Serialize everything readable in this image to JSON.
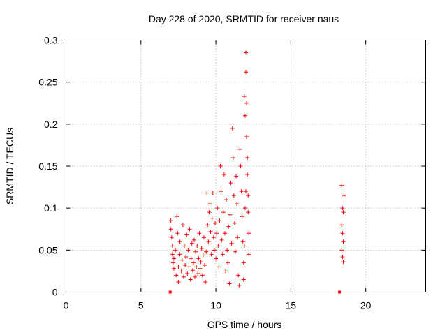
{
  "chart_data": {
    "type": "scatter",
    "title": "Day 228 of 2020, SRMTID for receiver naus",
    "xlabel": "GPS time / hours",
    "ylabel": "SRMTID / TECUs",
    "xlim": [
      0,
      24
    ],
    "ylim": [
      0,
      0.3
    ],
    "xticks": [
      0,
      5,
      10,
      15,
      20
    ],
    "xtick_labels": [
      "0",
      "5",
      "10",
      "15",
      "20"
    ],
    "yticks": [
      0,
      0.05,
      0.1,
      0.15,
      0.2,
      0.25,
      0.3
    ],
    "ytick_labels": [
      "0",
      "0.05",
      "0.1",
      "0.15",
      "0.2",
      "0.25",
      "0.3"
    ],
    "grid": true,
    "marker": "+",
    "color": "#ff0000",
    "series": [
      {
        "name": "SRMTID",
        "points": [
          [
            7.0,
            0.085
          ],
          [
            7.0,
            0.075
          ],
          [
            7.05,
            0.065
          ],
          [
            7.1,
            0.055
          ],
          [
            7.1,
            0.045
          ],
          [
            7.15,
            0.035
          ],
          [
            7.2,
            0.04
          ],
          [
            7.2,
            0.028
          ],
          [
            7.3,
            0.05
          ],
          [
            7.35,
            0.02
          ],
          [
            7.4,
            0.09
          ],
          [
            7.45,
            0.07
          ],
          [
            7.5,
            0.03
          ],
          [
            7.5,
            0.012
          ],
          [
            7.6,
            0.06
          ],
          [
            7.6,
            0.045
          ],
          [
            7.7,
            0.025
          ],
          [
            7.75,
            0.038
          ],
          [
            7.8,
            0.08
          ],
          [
            7.85,
            0.018
          ],
          [
            7.9,
            0.055
          ],
          [
            7.95,
            0.032
          ],
          [
            8.0,
            0.042
          ],
          [
            8.05,
            0.068
          ],
          [
            8.1,
            0.022
          ],
          [
            8.15,
            0.05
          ],
          [
            8.2,
            0.03
          ],
          [
            8.25,
            0.075
          ],
          [
            8.3,
            0.015
          ],
          [
            8.35,
            0.04
          ],
          [
            8.4,
            0.058
          ],
          [
            8.45,
            0.026
          ],
          [
            8.5,
            0.035
          ],
          [
            8.55,
            0.062
          ],
          [
            8.6,
            0.018
          ],
          [
            8.65,
            0.048
          ],
          [
            8.7,
            0.03
          ],
          [
            8.75,
            0.055
          ],
          [
            8.8,
            0.022
          ],
          [
            8.85,
            0.04
          ],
          [
            8.9,
            0.07
          ],
          [
            8.95,
            0.028
          ],
          [
            9.0,
            0.036
          ],
          [
            9.05,
            0.052
          ],
          [
            9.1,
            0.02
          ],
          [
            9.15,
            0.044
          ],
          [
            9.2,
            0.065
          ],
          [
            9.25,
            0.032
          ],
          [
            9.3,
            0.012
          ],
          [
            9.35,
            0.048
          ],
          [
            9.4,
            0.118
          ],
          [
            9.45,
            0.08
          ],
          [
            9.5,
            0.06
          ],
          [
            9.55,
            0.095
          ],
          [
            9.6,
            0.105
          ],
          [
            9.65,
            0.072
          ],
          [
            9.7,
            0.045
          ],
          [
            9.75,
            0.088
          ],
          [
            9.8,
            0.118
          ],
          [
            9.85,
            0.065
          ],
          [
            9.9,
            0.05
          ],
          [
            9.95,
            0.082
          ],
          [
            10.0,
            0.04
          ],
          [
            10.05,
            0.07
          ],
          [
            10.1,
            0.1
          ],
          [
            10.15,
            0.055
          ],
          [
            10.2,
            0.03
          ],
          [
            10.25,
            0.085
          ],
          [
            10.3,
            0.15
          ],
          [
            10.35,
            0.12
          ],
          [
            10.4,
            0.062
          ],
          [
            10.45,
            0.045
          ],
          [
            10.5,
            0.095
          ],
          [
            10.55,
            0.14
          ],
          [
            10.6,
            0.07
          ],
          [
            10.65,
            0.025
          ],
          [
            10.7,
            0.11
          ],
          [
            10.75,
            0.05
          ],
          [
            10.8,
            0.035
          ],
          [
            10.85,
            0.078
          ],
          [
            10.9,
            0.01
          ],
          [
            10.95,
            0.092
          ],
          [
            11.0,
            0.13
          ],
          [
            11.05,
            0.058
          ],
          [
            11.1,
            0.195
          ],
          [
            11.15,
            0.16
          ],
          [
            11.2,
            0.115
          ],
          [
            11.25,
            0.082
          ],
          [
            11.3,
            0.048
          ],
          [
            11.35,
            0.138
          ],
          [
            11.4,
            0.105
          ],
          [
            11.45,
            0.065
          ],
          [
            11.5,
            0.02
          ],
          [
            11.55,
            0.008
          ],
          [
            11.6,
            0.17
          ],
          [
            11.65,
            0.15
          ],
          [
            11.7,
            0.12
          ],
          [
            11.75,
            0.09
          ],
          [
            11.8,
            0.06
          ],
          [
            11.85,
            0.035
          ],
          [
            11.9,
            0.233
          ],
          [
            11.95,
            0.21
          ],
          [
            12.0,
            0.285
          ],
          [
            12.0,
            0.262
          ],
          [
            12.05,
            0.225
          ],
          [
            12.05,
            0.185
          ],
          [
            12.1,
            0.16
          ],
          [
            12.1,
            0.14
          ],
          [
            12.15,
            0.115
          ],
          [
            12.15,
            0.095
          ],
          [
            12.2,
            0.07
          ],
          [
            12.2,
            0.045
          ],
          [
            12.0,
            0.12
          ],
          [
            11.95,
            0.1
          ],
          [
            11.9,
            0.055
          ],
          [
            11.85,
            0.015
          ],
          [
            18.4,
            0.127
          ],
          [
            18.45,
            0.1
          ],
          [
            18.5,
            0.095
          ],
          [
            18.4,
            0.08
          ],
          [
            18.45,
            0.07
          ],
          [
            18.5,
            0.06
          ],
          [
            18.4,
            0.05
          ],
          [
            18.45,
            0.042
          ],
          [
            18.5,
            0.036
          ],
          [
            18.55,
            0.115
          ]
        ]
      }
    ],
    "zero_markers": [
      [
        6.95,
        0
      ],
      [
        18.25,
        0
      ]
    ]
  }
}
